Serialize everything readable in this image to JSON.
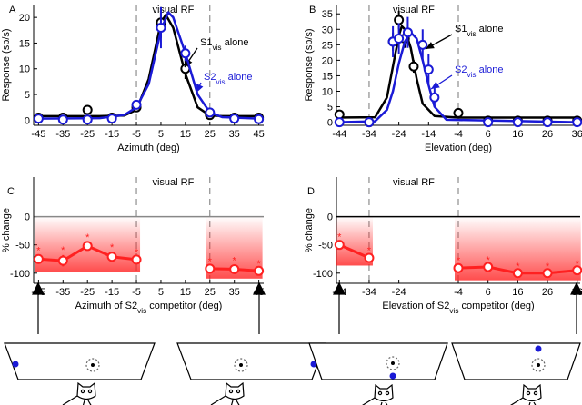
{
  "chart_data": [
    {
      "panel_label": "A",
      "type": "line",
      "annotation": "visual RF",
      "rf_bounds": [
        -5,
        25
      ],
      "xlabel": "Azimuth (deg)",
      "ylabel": "Response (sp/s)",
      "xlim": [
        -47,
        47
      ],
      "xticks": [
        -45,
        -35,
        -25,
        -15,
        -5,
        5,
        15,
        25,
        35,
        45
      ],
      "ylim": [
        -1,
        22.5
      ],
      "yticks": [
        0,
        5,
        10,
        15,
        20
      ],
      "series": [
        {
          "name": {
            "text": "S1",
            "subscript": "vis",
            "suffix": " alone"
          },
          "color": "#000000",
          "x": [
            -45,
            -35,
            -25,
            -15,
            -5,
            5,
            15,
            25,
            35,
            45
          ],
          "values": [
            0.5,
            0.5,
            2,
            0.5,
            2.5,
            19,
            10,
            1,
            0.5,
            0.5
          ],
          "errors": [
            null,
            null,
            null,
            null,
            0.8,
            3,
            2,
            null,
            null,
            null
          ],
          "fit_x": [
            -45,
            -20,
            -10,
            -5,
            0,
            5,
            7,
            10,
            15,
            20,
            25,
            30,
            45
          ],
          "fit_values": [
            0.8,
            0.8,
            0.9,
            2,
            8,
            19,
            20.5,
            18,
            9,
            2.5,
            0.9,
            0.8,
            0.8
          ]
        },
        {
          "name": {
            "text": "S2",
            "subscript": "vis",
            "suffix": " alone"
          },
          "color": "#1a1ad6",
          "x": [
            -45,
            -35,
            -25,
            -15,
            -5,
            5,
            15,
            25,
            35,
            45
          ],
          "values": [
            0.3,
            0.1,
            0.1,
            0.3,
            3,
            18,
            13,
            1.5,
            0.3,
            0.2
          ],
          "errors": [
            null,
            null,
            null,
            null,
            0.8,
            4,
            1.5,
            null,
            null,
            null
          ],
          "fit_x": [
            -45,
            -20,
            -10,
            -5,
            0,
            5,
            8,
            10,
            15,
            20,
            25,
            30,
            45
          ],
          "fit_values": [
            0.3,
            0.4,
            1,
            2.5,
            7,
            17.5,
            21,
            20,
            13,
            5,
            1.5,
            0.6,
            0.3
          ]
        }
      ]
    },
    {
      "panel_label": "B",
      "type": "line",
      "annotation": "visual RF",
      "rf_bounds": [
        -34,
        -4
      ],
      "xlabel": "Elevation (deg)",
      "ylabel": "Response (sp/s)",
      "xlim": [
        -45,
        37
      ],
      "xticks": [
        -44,
        -34,
        -24,
        -14,
        -4,
        6,
        16,
        26,
        36
      ],
      "ylim": [
        -1,
        38
      ],
      "yticks": [
        0,
        5,
        10,
        15,
        20,
        25,
        30,
        35
      ],
      "series": [
        {
          "name": {
            "text": "S1",
            "subscript": "vis",
            "suffix": " alone"
          },
          "color": "#000000",
          "x": [
            -44,
            -34,
            -26,
            -24,
            -22,
            -19,
            -4,
            6,
            16,
            26,
            36
          ],
          "values": [
            2.5,
            0,
            26,
            33,
            27,
            18,
            3,
            0.5,
            0.5,
            0.5,
            0.5
          ],
          "errors": [
            null,
            null,
            3,
            3,
            3,
            2,
            null,
            null,
            null,
            null,
            null
          ],
          "fit_x": [
            -44,
            -32,
            -28,
            -26,
            -24,
            -23,
            -22,
            -20,
            -18,
            -16,
            -12,
            -4,
            36
          ],
          "fit_values": [
            1.5,
            1.6,
            8,
            18,
            28,
            31,
            30,
            24,
            14,
            6,
            2,
            1.5,
            1.5
          ]
        },
        {
          "name": {
            "text": "S2",
            "subscript": "vis",
            "suffix": " alone"
          },
          "color": "#1a1ad6",
          "x": [
            -44,
            -34,
            -26,
            -24,
            -21,
            -16,
            -14,
            -12,
            6,
            16,
            26,
            36
          ],
          "values": [
            0,
            0,
            26,
            27,
            29,
            25,
            17,
            8,
            0,
            0,
            0,
            0
          ],
          "errors": [
            null,
            null,
            5,
            5,
            5,
            5,
            5,
            3,
            null,
            null,
            null,
            null
          ],
          "fit_x": [
            -44,
            -32,
            -28,
            -26,
            -24,
            -22,
            -20,
            -18,
            -16,
            -14,
            -12,
            -8,
            36
          ],
          "fit_values": [
            0,
            0.3,
            4,
            10,
            19,
            26,
            29,
            27,
            20,
            12,
            5,
            0.8,
            0
          ]
        }
      ]
    },
    {
      "panel_label": "C",
      "type": "line",
      "annotation": "visual RF",
      "rf_bounds": [
        -5,
        25
      ],
      "xlabel": {
        "text": "Azimuth of S2",
        "subscript": "vis",
        "suffix": " competitor (deg)"
      },
      "ylabel": "% change",
      "xlim": [
        -47,
        47
      ],
      "xticks": [
        -45,
        -35,
        -25,
        -15,
        -5,
        5,
        15,
        25,
        35,
        45
      ],
      "ylim": [
        -118,
        70
      ],
      "yticks": [
        -100,
        -50,
        0
      ],
      "zero_line_color": "#888888",
      "color": "#ff2020",
      "marker_label": "*",
      "segments": [
        {
          "x": [
            -45,
            -35,
            -25,
            -15,
            -5
          ],
          "values": [
            -75,
            -78,
            -52,
            -71,
            -76
          ],
          "errors": [
            6,
            10,
            6,
            8,
            4
          ]
        },
        {
          "x": [
            25,
            35,
            45
          ],
          "values": [
            -92,
            -93,
            -96
          ],
          "errors": [
            4,
            6,
            4
          ]
        }
      ]
    },
    {
      "panel_label": "D",
      "type": "line",
      "annotation": "visual RF",
      "rf_bounds": [
        -34,
        -4
      ],
      "xlabel": {
        "text": "Elevation of S2",
        "subscript": "vis",
        "suffix": " competitor (deg)"
      },
      "ylabel": "% change",
      "xlim": [
        -45,
        37
      ],
      "xticks": [
        -44,
        -34,
        -24,
        -4,
        6,
        16,
        26,
        36
      ],
      "ylim": [
        -118,
        70
      ],
      "yticks": [
        -100,
        -50,
        0
      ],
      "zero_line_color": "#000000",
      "color": "#ff2020",
      "marker_label": "*",
      "segments": [
        {
          "x": [
            -44,
            -34
          ],
          "values": [
            -50,
            -73
          ],
          "errors": [
            5,
            4
          ]
        },
        {
          "x": [
            -4,
            6,
            16,
            26,
            36
          ],
          "values": [
            -91,
            -89,
            -100,
            -100,
            -95
          ],
          "errors": [
            4,
            3,
            3,
            3,
            3
          ]
        }
      ]
    }
  ]
}
